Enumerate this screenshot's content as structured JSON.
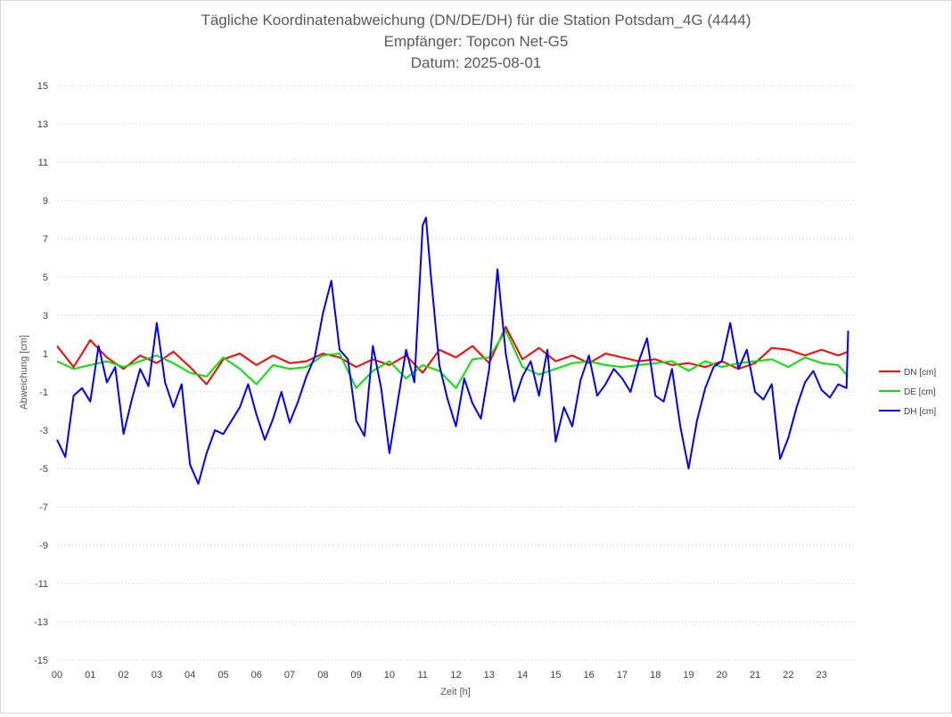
{
  "chart_data": {
    "type": "line",
    "title_lines": [
      "Tägliche Koordinatenabweichung (DN/DE/DH) für die Station Potsdam_4G (4444)",
      "Empfänger: Topcon Net-G5",
      "Datum: 2025-08-01"
    ],
    "xlabel": "Zeit [h]",
    "ylabel": "Abweichung [cm]",
    "x_tick_labels": [
      "00",
      "01",
      "02",
      "03",
      "04",
      "05",
      "06",
      "07",
      "08",
      "09",
      "10",
      "11",
      "12",
      "13",
      "14",
      "15",
      "16",
      "17",
      "18",
      "19",
      "20",
      "21",
      "22",
      "23"
    ],
    "xlim": [
      0,
      24
    ],
    "ylim": [
      -15,
      15
    ],
    "y_ticks": [
      15,
      13,
      11,
      9,
      7,
      5,
      3,
      1,
      -1,
      -3,
      -5,
      -7,
      -9,
      -11,
      -13,
      -15
    ],
    "grid": true,
    "legend_position": "right",
    "series": [
      {
        "name": "DN [cm]",
        "color": "#ff0000",
        "x": [
          0,
          0.5,
          1,
          1.5,
          2,
          2.5,
          3,
          3.5,
          4,
          4.5,
          5,
          5.5,
          6,
          6.5,
          7,
          7.5,
          8,
          8.5,
          9,
          9.5,
          10,
          10.5,
          11,
          11.5,
          12,
          12.5,
          13,
          13.5,
          14,
          14.5,
          15,
          15.5,
          16,
          16.5,
          17,
          17.5,
          18,
          18.5,
          19,
          19.5,
          20,
          20.5,
          21,
          21.5,
          22,
          22.5,
          23,
          23.5,
          23.8
        ],
        "y": [
          1.4,
          0.3,
          1.7,
          0.8,
          0.2,
          0.9,
          0.5,
          1.1,
          0.3,
          -0.6,
          0.7,
          1.0,
          0.4,
          0.9,
          0.5,
          0.6,
          1.0,
          0.8,
          0.3,
          0.7,
          0.4,
          0.9,
          0.0,
          1.2,
          0.8,
          1.4,
          0.5,
          2.4,
          0.7,
          1.3,
          0.6,
          0.9,
          0.5,
          1.0,
          0.8,
          0.6,
          0.7,
          0.4,
          0.5,
          0.3,
          0.6,
          0.2,
          0.5,
          1.3,
          1.2,
          0.9,
          1.2,
          0.9,
          1.1
        ]
      },
      {
        "name": "DE [cm]",
        "color": "#00e600",
        "x": [
          0,
          0.5,
          1,
          1.5,
          2,
          2.5,
          3,
          3.5,
          4,
          4.5,
          5,
          5.5,
          6,
          6.5,
          7,
          7.5,
          8,
          8.5,
          9,
          9.5,
          10,
          10.5,
          11,
          11.5,
          12,
          12.5,
          13,
          13.5,
          14,
          14.5,
          15,
          15.5,
          16,
          16.5,
          17,
          17.5,
          18,
          18.5,
          19,
          19.5,
          20,
          20.5,
          21,
          21.5,
          22,
          22.5,
          23,
          23.5,
          23.8
        ],
        "y": [
          0.6,
          0.2,
          0.4,
          0.6,
          0.3,
          0.6,
          0.9,
          0.5,
          0.0,
          -0.2,
          0.8,
          0.2,
          -0.6,
          0.4,
          0.2,
          0.3,
          0.9,
          1.0,
          -0.8,
          0.1,
          0.6,
          -0.3,
          0.4,
          0.1,
          -0.8,
          0.7,
          0.8,
          2.2,
          0.3,
          -0.1,
          0.2,
          0.5,
          0.6,
          0.4,
          0.3,
          0.4,
          0.5,
          0.6,
          0.1,
          0.6,
          0.3,
          0.5,
          0.6,
          0.7,
          0.3,
          0.8,
          0.5,
          0.4,
          -0.2
        ]
      },
      {
        "name": "DH [cm]",
        "color": "#0000ff",
        "x": [
          0,
          0.25,
          0.5,
          0.75,
          1,
          1.25,
          1.5,
          1.75,
          2,
          2.25,
          2.5,
          2.75,
          3,
          3.25,
          3.5,
          3.75,
          4,
          4.25,
          4.5,
          4.75,
          5,
          5.25,
          5.5,
          5.75,
          6,
          6.25,
          6.5,
          6.75,
          7,
          7.25,
          7.5,
          7.75,
          8,
          8.25,
          8.5,
          8.75,
          9,
          9.25,
          9.5,
          9.75,
          10,
          10.25,
          10.5,
          10.75,
          11,
          11.1,
          11.25,
          11.5,
          11.75,
          12,
          12.25,
          12.5,
          12.75,
          13,
          13.25,
          13.5,
          13.75,
          14,
          14.25,
          14.5,
          14.75,
          15,
          15.25,
          15.5,
          15.75,
          16,
          16.25,
          16.5,
          16.75,
          17,
          17.25,
          17.5,
          17.75,
          18,
          18.25,
          18.5,
          18.75,
          19,
          19.25,
          19.5,
          19.75,
          20,
          20.25,
          20.5,
          20.75,
          21,
          21.25,
          21.5,
          21.75,
          22,
          22.25,
          22.5,
          22.75,
          23,
          23.25,
          23.5,
          23.75,
          23.8
        ],
        "y": [
          -3.5,
          -4.4,
          -1.2,
          -0.8,
          -1.5,
          1.4,
          -0.5,
          0.3,
          -3.2,
          -1.4,
          0.2,
          -0.7,
          2.6,
          -0.5,
          -1.8,
          -0.6,
          -4.8,
          -5.8,
          -4.2,
          -3.0,
          -3.2,
          -2.5,
          -1.8,
          -0.6,
          -2.2,
          -3.5,
          -2.4,
          -1.0,
          -2.6,
          -1.5,
          -0.2,
          0.8,
          3.1,
          4.8,
          1.2,
          0.7,
          -2.5,
          -3.3,
          1.4,
          -0.8,
          -4.2,
          -1.5,
          1.2,
          -0.5,
          7.7,
          8.1,
          5.0,
          0.4,
          -1.4,
          -2.8,
          -0.3,
          -1.6,
          -2.4,
          0.2,
          5.4,
          1.0,
          -1.5,
          -0.2,
          0.6,
          -1.2,
          1.2,
          -3.6,
          -1.8,
          -2.8,
          -0.4,
          0.9,
          -1.2,
          -0.6,
          0.2,
          -0.3,
          -1.0,
          0.6,
          1.8,
          -1.2,
          -1.5,
          0.2,
          -2.8,
          -5.0,
          -2.5,
          -0.8,
          0.3,
          0.6,
          2.6,
          0.2,
          1.2,
          -1.0,
          -1.4,
          -0.6,
          -4.5,
          -3.4,
          -1.8,
          -0.5,
          0.1,
          -0.9,
          -1.3,
          -0.6,
          -0.8,
          2.2
        ]
      }
    ]
  }
}
